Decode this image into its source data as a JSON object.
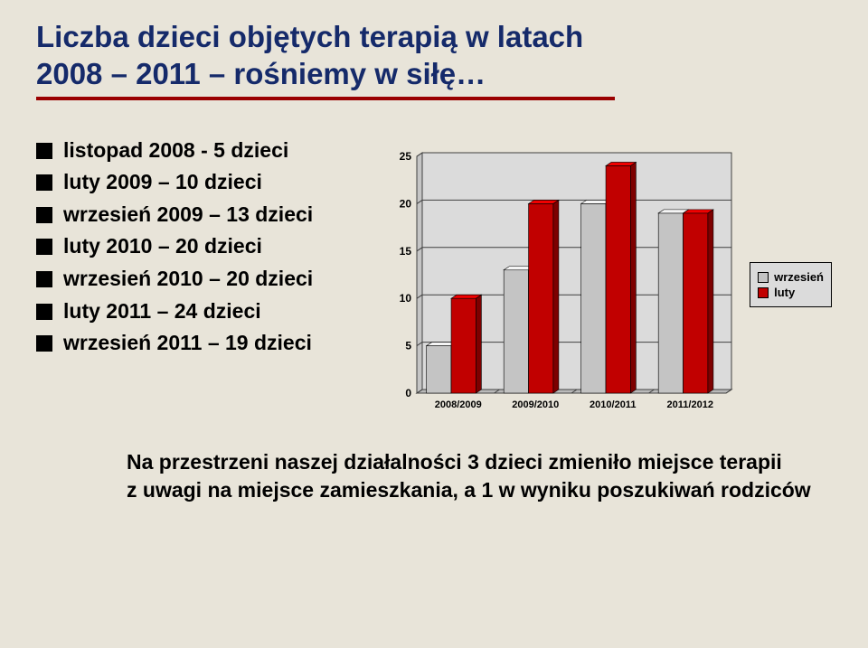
{
  "title_line1": "Liczba dzieci objętych terapią w latach",
  "title_line2": "2008 – 2011 – rośniemy w siłę…",
  "bullets": [
    "listopad 2008 - 5 dzieci",
    "luty 2009 – 10 dzieci",
    "wrzesień 2009 – 13 dzieci",
    "luty 2010 – 20 dzieci",
    "wrzesień 2010 – 20 dzieci",
    "luty 2011 – 24  dzieci",
    "wrzesień 2011 – 19 dzieci"
  ],
  "footer_line1": "Na przestrzeni naszej działalności 3 dzieci zmieniło miejsce terapii",
  "footer_line2": "z uwagi na miejsce zamieszkania, a 1 w wyniku poszukiwań rodziców",
  "chart": {
    "type": "bar",
    "categories": [
      "2008/2009",
      "2009/2010",
      "2010/2011",
      "2011/2012"
    ],
    "series": [
      {
        "name": "wrzesień",
        "values": [
          5,
          13,
          20,
          19
        ],
        "color": "#c4c4c4"
      },
      {
        "name": "luty",
        "values": [
          10,
          20,
          24,
          19
        ],
        "color": "#c10000"
      }
    ],
    "ylim": [
      0,
      25
    ],
    "ytick_step": 5,
    "grid_color": "#404040",
    "background_color": "#dbdbdb",
    "axis_fontsize": 12,
    "label_fontsize": 11,
    "is3d": true,
    "depth_dx": 6,
    "depth_dy": -4,
    "bar_group_gap": 0.25,
    "bar_width": 0.32
  },
  "legend": {
    "items": [
      {
        "label": "wrzesień",
        "color": "#c4c4c4"
      },
      {
        "label": "luty",
        "color": "#c10000"
      }
    ]
  },
  "colors": {
    "page_bg": "#e8e4d9",
    "title": "#152a6a",
    "rule": "#9a0000"
  }
}
